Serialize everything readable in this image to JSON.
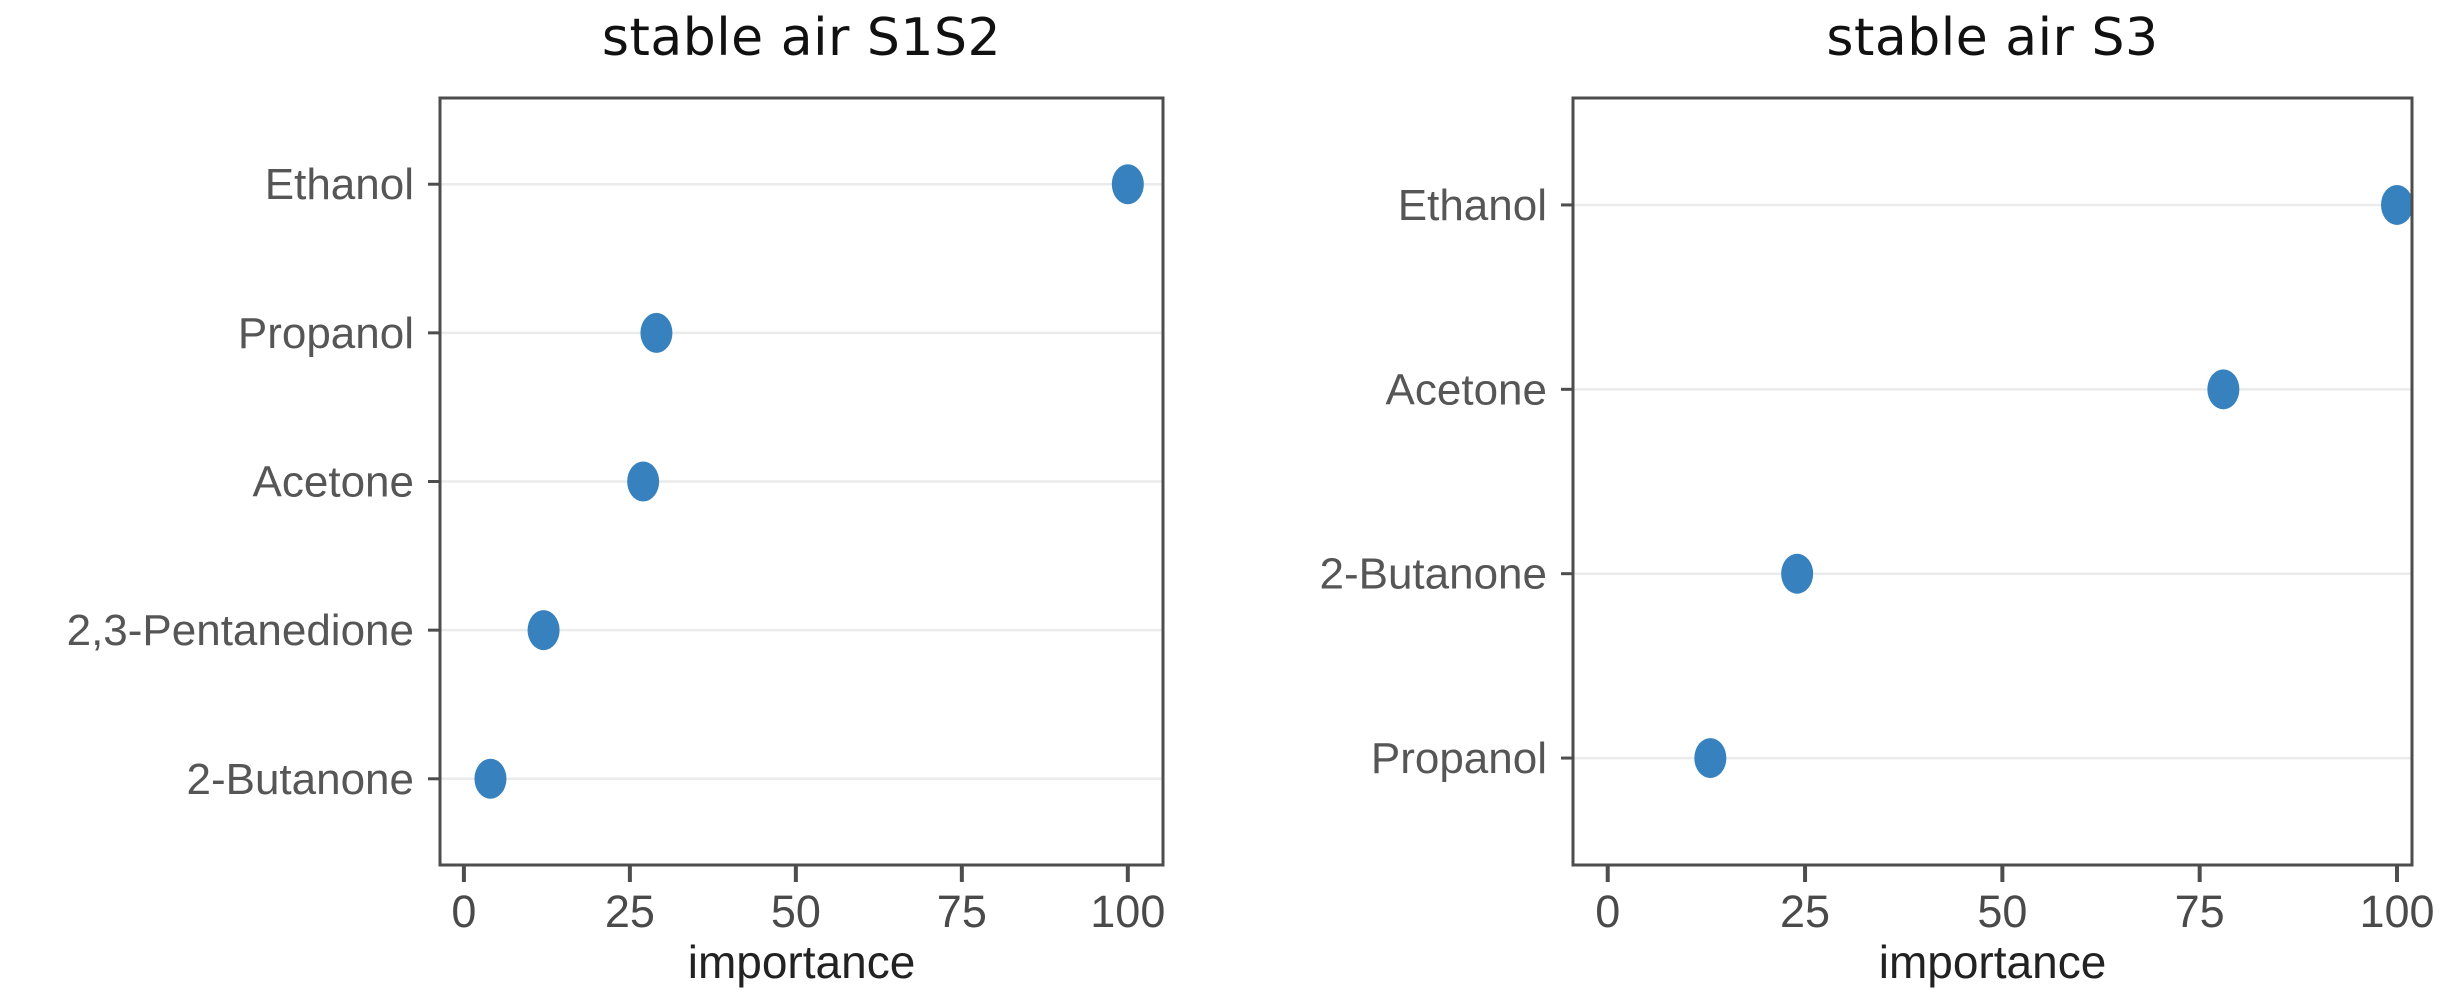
{
  "figure": {
    "background": "#ffffff"
  },
  "colors": {
    "dot": "#3782be",
    "spine": "#4d4d4d",
    "grid": "#ebebeb",
    "tick_label": "#4a4a4a",
    "category_label": "#565656",
    "title": "#111111",
    "xlabel": "#222222"
  },
  "chart_data": [
    {
      "type": "scatter",
      "subtype": "horizontal-dot-plot",
      "title": "stable air S1S2",
      "xlabel": "importance",
      "categories": [
        "Ethanol",
        "Propanol",
        "Acetone",
        "2,3-Pentanedione",
        "2-Butanone"
      ],
      "values": [
        100,
        29,
        27,
        12,
        4
      ],
      "xticks": [
        0,
        25,
        50,
        75,
        100
      ],
      "xlim": [
        -3.6,
        105.3
      ],
      "grid": "horizontal",
      "legend": "none",
      "dot_color": "#3782be"
    },
    {
      "type": "scatter",
      "subtype": "horizontal-dot-plot",
      "title": "stable air S3",
      "xlabel": "importance",
      "categories": [
        "Ethanol",
        "Acetone",
        "2-Butanone",
        "Propanol"
      ],
      "values": [
        100,
        78,
        24,
        13
      ],
      "xticks": [
        0,
        25,
        50,
        75,
        100
      ],
      "xlim": [
        -4.4,
        101.9
      ],
      "grid": "horizontal",
      "legend": "none",
      "dot_color": "#3782be"
    }
  ]
}
